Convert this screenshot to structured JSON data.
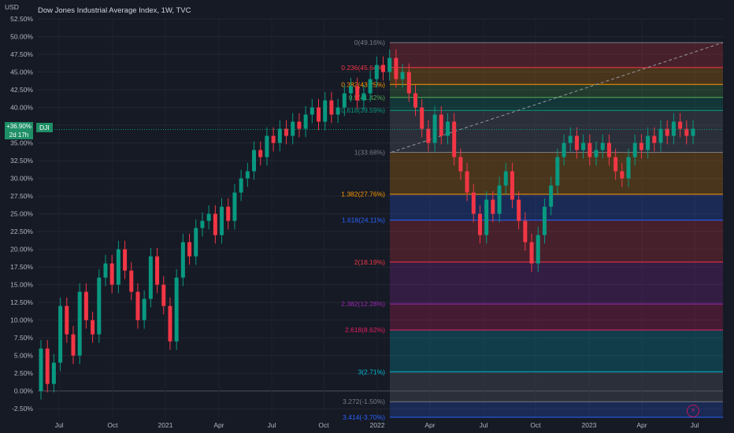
{
  "header": {
    "currency": "USD",
    "title": "Dow Jones Industrial Average Index, 1W, TVC"
  },
  "price_badge": {
    "value": "+36.90%",
    "countdown": "2d 17h",
    "symbol": "DJI"
  },
  "chart_data": {
    "type": "candlestick",
    "title": "Dow Jones Industrial Average Index, 1W, TVC",
    "ylabel": "USD",
    "y_unit": "% change",
    "ylim": [
      -3.7,
      52.5
    ],
    "yticks": [
      "52.50%",
      "50.00%",
      "47.50%",
      "45.00%",
      "42.50%",
      "40.00%",
      "37.50%",
      "35.00%",
      "32.50%",
      "30.00%",
      "27.50%",
      "25.00%",
      "22.50%",
      "20.00%",
      "17.50%",
      "15.00%",
      "12.50%",
      "10.00%",
      "7.50%",
      "5.00%",
      "2.50%",
      "0.00%",
      "-2.50%"
    ],
    "xticks": [
      "Jul",
      "Oct",
      "2021",
      "Apr",
      "Jul",
      "Oct",
      "2022",
      "Apr",
      "Jul",
      "Oct",
      "2023",
      "Apr",
      "Jul"
    ],
    "last_value": 36.9,
    "series": [
      {
        "values": [
          [
            0,
            6
          ],
          [
            6,
            1
          ],
          [
            1,
            4
          ],
          [
            4,
            12
          ],
          [
            12,
            8
          ],
          [
            8,
            5
          ],
          [
            5,
            14
          ],
          [
            14,
            10
          ],
          [
            10,
            8
          ],
          [
            8,
            16
          ],
          [
            16,
            18
          ],
          [
            18,
            15
          ],
          [
            15,
            20
          ],
          [
            20,
            17
          ],
          [
            17,
            14
          ],
          [
            14,
            10
          ],
          [
            10,
            13
          ],
          [
            13,
            19
          ],
          [
            19,
            15
          ],
          [
            15,
            12
          ],
          [
            12,
            7
          ],
          [
            7,
            16
          ],
          [
            16,
            21
          ],
          [
            21,
            19
          ],
          [
            19,
            23
          ],
          [
            23,
            24
          ],
          [
            24,
            25
          ],
          [
            25,
            22
          ],
          [
            22,
            26
          ],
          [
            26,
            24
          ],
          [
            24,
            28
          ],
          [
            28,
            30
          ],
          [
            30,
            31
          ],
          [
            31,
            34
          ],
          [
            34,
            33
          ],
          [
            33,
            36
          ],
          [
            36,
            35
          ],
          [
            35,
            37
          ],
          [
            37,
            36
          ],
          [
            36,
            38
          ],
          [
            38,
            37
          ],
          [
            37,
            39
          ],
          [
            39,
            40
          ],
          [
            40,
            38
          ],
          [
            38,
            41
          ],
          [
            41,
            39
          ],
          [
            39,
            40
          ],
          [
            40,
            42
          ],
          [
            42,
            43
          ],
          [
            43,
            41
          ],
          [
            41,
            42
          ],
          [
            42,
            44
          ],
          [
            44,
            46
          ],
          [
            46,
            45
          ],
          [
            45,
            47
          ],
          [
            47,
            44
          ],
          [
            44,
            45
          ],
          [
            45,
            42
          ],
          [
            42,
            40
          ],
          [
            40,
            37
          ],
          [
            37,
            35
          ],
          [
            35,
            39
          ],
          [
            39,
            36
          ],
          [
            36,
            38
          ],
          [
            38,
            33
          ],
          [
            33,
            31
          ],
          [
            31,
            28
          ],
          [
            28,
            25
          ],
          [
            25,
            22
          ],
          [
            22,
            27
          ],
          [
            27,
            25
          ],
          [
            25,
            29
          ],
          [
            29,
            31
          ],
          [
            31,
            27
          ],
          [
            27,
            24
          ],
          [
            24,
            21
          ],
          [
            21,
            18
          ],
          [
            18,
            22
          ],
          [
            22,
            26
          ],
          [
            26,
            29
          ],
          [
            29,
            33
          ],
          [
            33,
            35
          ],
          [
            35,
            36
          ],
          [
            36,
            34
          ],
          [
            34,
            35
          ],
          [
            35,
            33
          ],
          [
            33,
            34
          ],
          [
            34,
            35
          ],
          [
            35,
            33
          ],
          [
            33,
            31
          ],
          [
            31,
            30
          ],
          [
            30,
            33
          ],
          [
            33,
            35
          ],
          [
            35,
            34
          ],
          [
            34,
            36
          ],
          [
            36,
            35
          ],
          [
            35,
            37
          ],
          [
            37,
            36
          ],
          [
            36,
            38
          ],
          [
            38,
            37
          ],
          [
            37,
            36
          ],
          [
            36,
            37
          ]
        ]
      }
    ],
    "fibonacci": {
      "levels": [
        {
          "label": "0(49.16%)",
          "value": 49.16,
          "color": "#787b86"
        },
        {
          "label": "0.236(45.64%)",
          "value": 45.64,
          "color": "#f23645"
        },
        {
          "label": "0.382(43.25%)",
          "value": 43.25,
          "color": "#ff9800"
        },
        {
          "label": "0.5(41.42%)",
          "value": 41.42,
          "color": "#4caf50"
        },
        {
          "label": "0.618(39.59%)",
          "value": 39.59,
          "color": "#089981"
        },
        {
          "label": "1(33.68%)",
          "value": 33.68,
          "color": "#787b86"
        },
        {
          "label": "1.382(27.76%)",
          "value": 27.76,
          "color": "#ff9800"
        },
        {
          "label": "1.618(24.11%)",
          "value": 24.11,
          "color": "#2962ff"
        },
        {
          "label": "2(18.19%)",
          "value": 18.19,
          "color": "#f23645"
        },
        {
          "label": "2.382(12.28%)",
          "value": 12.28,
          "color": "#9c27b0"
        },
        {
          "label": "2.618(8.62%)",
          "value": 8.62,
          "color": "#e91e63"
        },
        {
          "label": "3(2.71%)",
          "value": 2.71,
          "color": "#00bcd4"
        },
        {
          "label": "3.272(-1.50%)",
          "value": -1.5,
          "color": "#787b86"
        },
        {
          "label": "3.414(-3.70%)",
          "value": -3.7,
          "color": "#2962ff"
        }
      ]
    }
  },
  "colors": {
    "up": "#089981",
    "down": "#f23645",
    "background": "#161a25"
  },
  "icons": {
    "bolt": "lightning-icon"
  }
}
